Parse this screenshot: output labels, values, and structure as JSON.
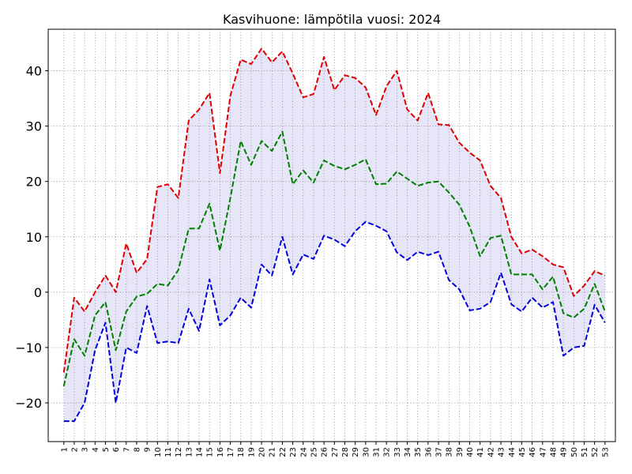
{
  "chart_data": {
    "type": "line",
    "title": "Kasvihuone: lämpötila vuosi: 2024",
    "xlabel": "",
    "ylabel": "",
    "x": [
      1,
      2,
      3,
      4,
      5,
      6,
      7,
      8,
      9,
      10,
      11,
      12,
      13,
      14,
      15,
      16,
      17,
      18,
      19,
      20,
      21,
      22,
      23,
      24,
      25,
      26,
      27,
      28,
      29,
      30,
      31,
      32,
      33,
      34,
      35,
      36,
      37,
      38,
      39,
      40,
      41,
      42,
      43,
      44,
      45,
      46,
      47,
      48,
      49,
      50,
      51,
      52,
      53
    ],
    "xlim": [
      -0.5,
      54
    ],
    "ylim": [
      -27,
      47.5
    ],
    "yticks": [
      -20,
      -10,
      0,
      10,
      20,
      30,
      40
    ],
    "grid": true,
    "band_between": [
      "max",
      "min"
    ],
    "band_color": "#e6e6f8",
    "series": [
      {
        "key": "max",
        "color": "#e00000",
        "style": "dashed",
        "values": [
          -14.5,
          -1,
          -3.5,
          0,
          3,
          0,
          8.8,
          3.5,
          6,
          19,
          19.5,
          17,
          31,
          33,
          36,
          21.5,
          35.5,
          42,
          41.2,
          44,
          41.5,
          43.5,
          39.5,
          35.2,
          35.8,
          42.5,
          36.5,
          39.2,
          38.7,
          37,
          32,
          37.2,
          40,
          33,
          31,
          36,
          30.3,
          30.2,
          27,
          25.2,
          23.8,
          19.2,
          17,
          10,
          7,
          7.7,
          6.5,
          5,
          4.5,
          -0.7,
          1.2,
          3.8,
          3
        ]
      },
      {
        "key": "mid",
        "color": "#008000",
        "style": "dashed",
        "values": [
          -17,
          -8.5,
          -11.5,
          -4.2,
          -1.8,
          -10.5,
          -3.5,
          -0.8,
          -0.3,
          1.5,
          1.2,
          4,
          11.5,
          11.5,
          16,
          7.5,
          17,
          27.3,
          23,
          27.3,
          25.5,
          29,
          19.5,
          22,
          19.8,
          23.8,
          22.8,
          22.2,
          23,
          24,
          19.5,
          19.6,
          21.8,
          20.5,
          19.2,
          19.8,
          20,
          18,
          15.8,
          11.8,
          6.5,
          9.8,
          10.2,
          3.2,
          3.2,
          3.2,
          0.5,
          2.8,
          -3.8,
          -4.6,
          -3,
          1.5,
          -3.5
        ]
      },
      {
        "key": "min",
        "color": "#0000e0",
        "style": "dashed",
        "values": [
          -23.3,
          -23.3,
          -20,
          -10.5,
          -5.5,
          -20,
          -10,
          -11,
          -2.5,
          -9.2,
          -8.9,
          -9.2,
          -3,
          -7,
          2.3,
          -6,
          -4.2,
          -1,
          -2.8,
          5,
          3,
          10,
          3.2,
          6.8,
          6,
          10.2,
          9.5,
          8.3,
          11,
          12.7,
          12,
          11,
          7.2,
          5.8,
          7.3,
          6.7,
          7.3,
          2.2,
          0.5,
          -3.3,
          -3,
          -1.8,
          3.5,
          -2.2,
          -3.5,
          -1,
          -2.8,
          -1.8,
          -11.5,
          -10,
          -9.7,
          -2.3,
          -5.5
        ]
      }
    ]
  }
}
